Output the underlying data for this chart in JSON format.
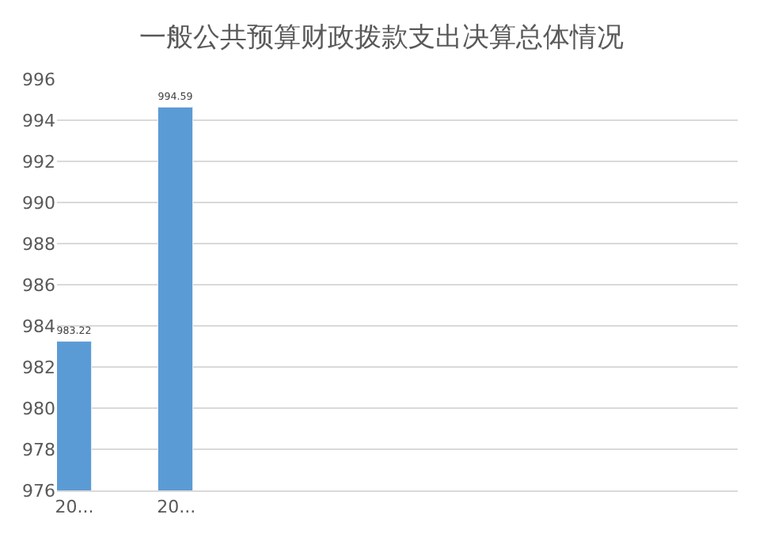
{
  "chart_data": {
    "type": "bar",
    "title": "一般公共预算财政拨款支出决算总体情况",
    "categories": [
      "20...",
      "20...",
      null,
      null,
      null,
      null,
      null
    ],
    "values": [
      983.22,
      994.59,
      null,
      null,
      null,
      null,
      null
    ],
    "color": "#5b9bd5",
    "ylim": [
      976,
      996
    ],
    "yticks": [
      976,
      978,
      980,
      982,
      984,
      986,
      988,
      990,
      992,
      994,
      996
    ],
    "grid": "y",
    "data_labels": true
  }
}
